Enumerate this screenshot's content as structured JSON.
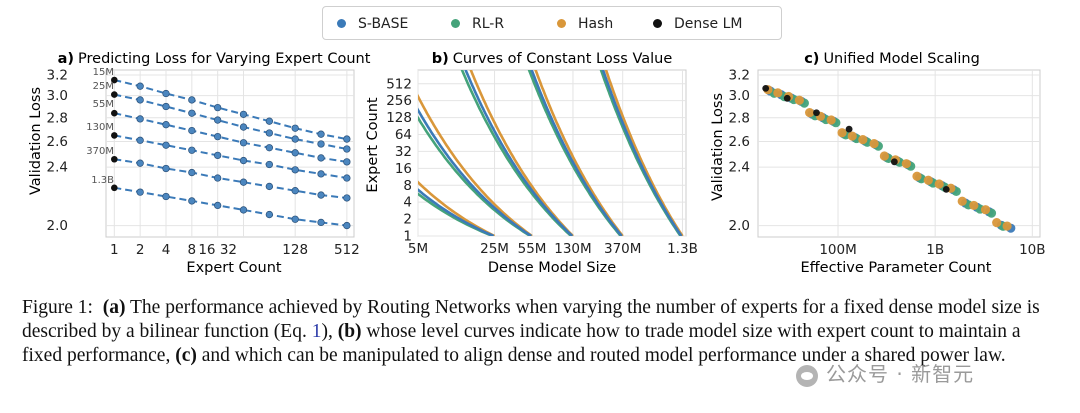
{
  "legend": {
    "items": [
      {
        "label": "S-BASE",
        "color": "#3b7ab8"
      },
      {
        "label": "RL-R",
        "color": "#45a37a"
      },
      {
        "label": "Hash",
        "color": "#d9973a"
      },
      {
        "label": "Dense LM",
        "color": "#111111"
      }
    ]
  },
  "chart_data": [
    {
      "type": "scatter",
      "panel_label": "a)",
      "title": "Predicting Loss for Varying Expert Count",
      "xlabel": "Expert Count",
      "ylabel": "Validation Loss",
      "xscale": "log2",
      "yscale": "log",
      "xlim": [
        0.8,
        620
      ],
      "ylim": [
        1.93,
        3.25
      ],
      "xticks": [
        1,
        2,
        4,
        8,
        16,
        32,
        128,
        512
      ],
      "xtick_labels": [
        "1",
        "2",
        "4",
        "8",
        "16 32",
        "",
        "128",
        "512"
      ],
      "yticks": [
        2.0,
        2.4,
        2.6,
        2.8,
        3.0,
        3.2
      ],
      "ytick_labels": [
        "2.0",
        "2.4",
        "2.6",
        "2.8",
        "3.0",
        "3.2"
      ],
      "grid": true,
      "x": [
        1,
        2,
        4,
        8,
        16,
        32,
        64,
        128,
        256,
        512
      ],
      "series": [
        {
          "name": "15M",
          "dense": 3.15,
          "values": [
            3.15,
            3.09,
            3.02,
            2.96,
            2.89,
            2.83,
            2.77,
            2.71,
            2.66,
            2.62
          ]
        },
        {
          "name": "25M",
          "dense": 3.01,
          "values": [
            3.01,
            2.96,
            2.9,
            2.84,
            2.78,
            2.72,
            2.67,
            2.62,
            2.58,
            2.54
          ]
        },
        {
          "name": "55M",
          "dense": 2.84,
          "values": [
            2.84,
            2.79,
            2.74,
            2.69,
            2.64,
            2.59,
            2.55,
            2.51,
            2.47,
            2.44
          ]
        },
        {
          "name": "130M",
          "dense": 2.65,
          "values": [
            2.65,
            2.61,
            2.57,
            2.53,
            2.49,
            2.45,
            2.42,
            2.38,
            2.35,
            2.32
          ]
        },
        {
          "name": "370M",
          "dense": 2.46,
          "values": [
            2.46,
            2.43,
            2.39,
            2.36,
            2.32,
            2.29,
            2.26,
            2.23,
            2.2,
            2.18
          ]
        },
        {
          "name": "1.3B",
          "dense": 2.25,
          "values": [
            2.25,
            2.22,
            2.19,
            2.16,
            2.13,
            2.1,
            2.07,
            2.04,
            2.02,
            2.0
          ]
        }
      ]
    },
    {
      "type": "line",
      "panel_label": "b)",
      "title": "Curves of Constant Loss Value",
      "xlabel": "Dense Model Size",
      "ylabel": "Expert Count",
      "xscale": "log",
      "yscale": "log2",
      "xlim": [
        5,
        1400
      ],
      "ylim": [
        1,
        900
      ],
      "xticks": [
        5,
        25,
        55,
        130,
        370,
        1300
      ],
      "xtick_labels": [
        "5M",
        "25M",
        "55M",
        "130M",
        "370M",
        "1.3B"
      ],
      "yticks": [
        1,
        2,
        4,
        8,
        16,
        32,
        64,
        128,
        256,
        512
      ],
      "ytick_labels": [
        "1",
        "2",
        "4",
        "8",
        "16",
        "32",
        "64",
        "128",
        "256",
        "512"
      ],
      "grid": true,
      "series": [
        {
          "name": "Hash",
          "color": "#d9973a",
          "curves": [
            {
              "e0": 10,
              "n1": 25
            },
            {
              "e0": 28,
              "n1": 55
            },
            {
              "e0": 110,
              "n1": 130
            },
            {
              "e0": 380,
              "n1": 370
            },
            {
              "e0": 1250,
              "n1": 1300
            }
          ]
        },
        {
          "name": "RL-R",
          "color": "#45a37a",
          "curves": [
            {
              "e0": 6.5,
              "n1": 24
            },
            {
              "e0": 18,
              "n1": 53
            },
            {
              "e0": 70,
              "n1": 125
            },
            {
              "e0": 250,
              "n1": 355
            },
            {
              "e0": 850,
              "n1": 1250
            }
          ]
        },
        {
          "name": "S-BASE",
          "color": "#3b7ab8",
          "curves": [
            {
              "e0": 7.5,
              "n1": 24.5
            },
            {
              "e0": 21,
              "n1": 54
            },
            {
              "e0": 82,
              "n1": 128
            },
            {
              "e0": 290,
              "n1": 362
            },
            {
              "e0": 990,
              "n1": 1270
            }
          ]
        }
      ]
    },
    {
      "type": "scatter",
      "panel_label": "c)",
      "title": "Unified Model Scaling",
      "xlabel": "Effective Parameter Count",
      "ylabel": "Validation Loss",
      "xscale": "log",
      "yscale": "log",
      "xlim": [
        15,
        12000
      ],
      "ylim": [
        1.93,
        3.25
      ],
      "xticks": [
        100,
        1000,
        10000
      ],
      "xtick_labels": [
        "100M",
        "1B",
        "10B"
      ],
      "yticks": [
        2.0,
        2.4,
        2.6,
        2.8,
        3.0,
        3.2
      ],
      "ytick_labels": [
        "2.0",
        "2.4",
        "2.6",
        "2.8",
        "3.0",
        "3.2"
      ],
      "grid": true,
      "power_law": {
        "n_ref": 15,
        "loss_ref": 3.15,
        "exponent": -0.0765
      },
      "series": [
        {
          "name": "Dense LM",
          "color": "#111111",
          "x": [
            18,
            30,
            60,
            130,
            380,
            1300
          ]
        },
        {
          "name": "RL-R",
          "color": "#45a37a",
          "x": [
            22,
            28,
            35,
            45,
            58,
            75,
            95,
            120,
            155,
            200,
            260,
            330,
            430,
            560,
            720,
            950,
            1250,
            1650,
            2200,
            2900,
            3800,
            5000
          ]
        },
        {
          "name": "S-BASE",
          "color": "#3b7ab8",
          "x": [
            20,
            26,
            33,
            42,
            54,
            70,
            90,
            115,
            150,
            190,
            245,
            315,
            410,
            530,
            690,
            900,
            1180,
            1550,
            2050,
            2700,
            3600,
            4800,
            6000
          ]
        },
        {
          "name": "Hash",
          "color": "#d9973a",
          "x": [
            19,
            24,
            31,
            40,
            51,
            66,
            85,
            110,
            140,
            180,
            235,
            300,
            390,
            505,
            650,
            850,
            1100,
            1450,
            1900,
            2500,
            3300,
            4300,
            5500
          ]
        }
      ]
    }
  ],
  "caption": {
    "figure_label": "Figure 1:",
    "part_a_label": "(a)",
    "part_a_text": "The performance achieved by Routing Networks when varying the number of experts for a fixed dense model size is described by a bilinear function (Eq.",
    "eq_ref": "1",
    "part_a_tail": "),",
    "part_b_label": "(b)",
    "part_b_text": "whose level curves indicate how to trade model size with expert count to maintain a fixed performance,",
    "part_c_label": "(c)",
    "part_c_text": "and which can be manipulated to align dense and routed model performance under a shared power law."
  },
  "watermark": {
    "text": "公众号 · 新智元"
  }
}
